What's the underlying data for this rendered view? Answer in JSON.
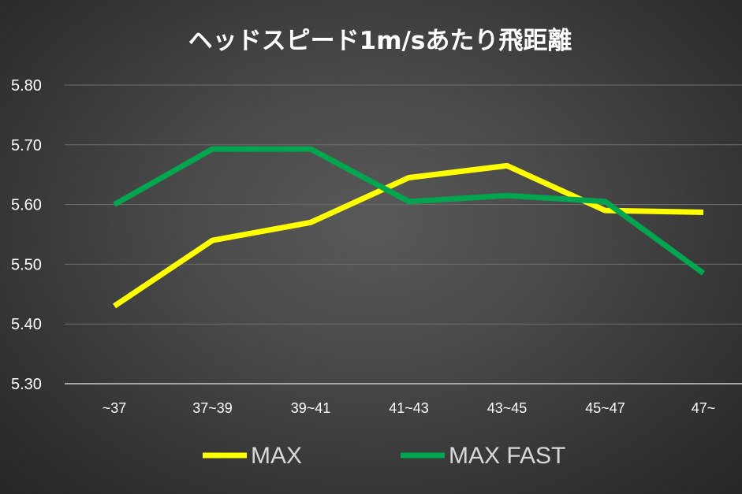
{
  "chart_data": {
    "type": "line",
    "title": "ヘッドスピード1m/sあたり飛距離",
    "xlabel": "",
    "ylabel": "",
    "categories": [
      "~37",
      "37~39",
      "39~41",
      "41~43",
      "43~45",
      "45~47",
      "47~"
    ],
    "yticks": [
      "5.30",
      "5.40",
      "5.50",
      "5.60",
      "5.70",
      "5.80"
    ],
    "ylim": [
      5.3,
      5.8
    ],
    "grid": true,
    "legend_position": "bottom",
    "series": [
      {
        "name": "MAX",
        "color": "#ffff00",
        "values": [
          5.43,
          5.54,
          5.57,
          5.645,
          5.665,
          5.59,
          5.587
        ]
      },
      {
        "name": "MAX FAST",
        "color": "#00a550",
        "values": [
          5.6,
          5.693,
          5.693,
          5.605,
          5.615,
          5.605,
          5.485
        ]
      }
    ]
  }
}
